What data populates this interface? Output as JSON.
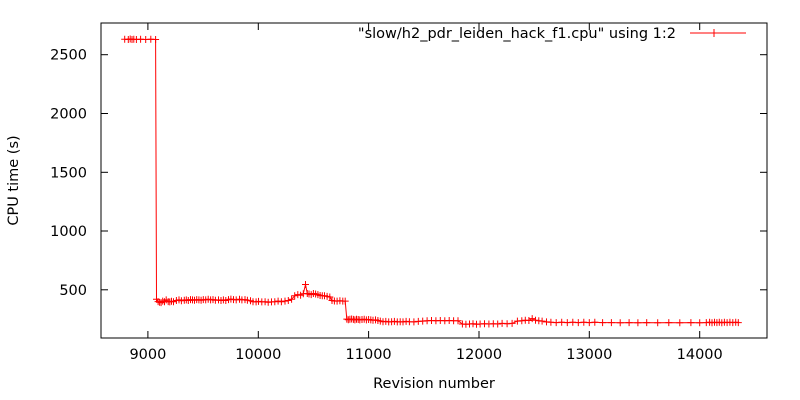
{
  "figure": {
    "background": "#ffffff",
    "border_color": "#000000",
    "text_color": "#000000",
    "series_color": "#ff0000"
  },
  "chart_data": {
    "type": "line",
    "title": "",
    "xlabel": "Revision number",
    "ylabel": "CPU time (s)",
    "legend": "\"slow/h2_pdr_leiden_hack_f1.cpu\" using 1:2",
    "legend_position": "top-right-inside",
    "marker": "plus",
    "grid": false,
    "xlim": [
      8575,
      14610
    ],
    "ylim": [
      90,
      2770
    ],
    "xticks": [
      9000,
      10000,
      11000,
      12000,
      13000,
      14000
    ],
    "yticks": [
      500,
      1000,
      1500,
      2000,
      2500
    ],
    "series": [
      {
        "name": "slow/h2_pdr_leiden_hack_f1.cpu",
        "points": [
          [
            8790,
            2632
          ],
          [
            8822,
            2630
          ],
          [
            8840,
            2634
          ],
          [
            8856,
            2630
          ],
          [
            8872,
            2632
          ],
          [
            8896,
            2630
          ],
          [
            8934,
            2632
          ],
          [
            8980,
            2630
          ],
          [
            9026,
            2632
          ],
          [
            9070,
            2630
          ],
          [
            9078,
            420
          ],
          [
            9092,
            400
          ],
          [
            9106,
            394
          ],
          [
            9120,
            391
          ],
          [
            9134,
            404
          ],
          [
            9150,
            398
          ],
          [
            9166,
            414
          ],
          [
            9184,
            400
          ],
          [
            9198,
            397
          ],
          [
            9214,
            402
          ],
          [
            9232,
            399
          ],
          [
            9258,
            409
          ],
          [
            9282,
            414
          ],
          [
            9304,
            407
          ],
          [
            9330,
            412
          ],
          [
            9348,
            414
          ],
          [
            9366,
            409
          ],
          [
            9386,
            417
          ],
          [
            9404,
            414
          ],
          [
            9422,
            411
          ],
          [
            9442,
            417
          ],
          [
            9462,
            414
          ],
          [
            9482,
            411
          ],
          [
            9502,
            417
          ],
          [
            9524,
            414
          ],
          [
            9546,
            419
          ],
          [
            9568,
            414
          ],
          [
            9590,
            417
          ],
          [
            9612,
            411
          ],
          [
            9640,
            414
          ],
          [
            9662,
            409
          ],
          [
            9684,
            414
          ],
          [
            9706,
            409
          ],
          [
            9730,
            417
          ],
          [
            9752,
            421
          ],
          [
            9776,
            417
          ],
          [
            9800,
            414
          ],
          [
            9830,
            419
          ],
          [
            9852,
            414
          ],
          [
            9880,
            417
          ],
          [
            9902,
            411
          ],
          [
            9930,
            407
          ],
          [
            9952,
            399
          ],
          [
            9980,
            397
          ],
          [
            10002,
            401
          ],
          [
            10032,
            397
          ],
          [
            10062,
            399
          ],
          [
            10090,
            394
          ],
          [
            10120,
            397
          ],
          [
            10150,
            399
          ],
          [
            10180,
            404
          ],
          [
            10210,
            399
          ],
          [
            10242,
            404
          ],
          [
            10272,
            409
          ],
          [
            10302,
            419
          ],
          [
            10330,
            449
          ],
          [
            10358,
            459
          ],
          [
            10384,
            454
          ],
          [
            10408,
            467
          ],
          [
            10428,
            545
          ],
          [
            10444,
            469
          ],
          [
            10460,
            464
          ],
          [
            10480,
            459
          ],
          [
            10500,
            469
          ],
          [
            10520,
            464
          ],
          [
            10540,
            459
          ],
          [
            10560,
            452
          ],
          [
            10580,
            449
          ],
          [
            10600,
            449
          ],
          [
            10624,
            444
          ],
          [
            10648,
            439
          ],
          [
            10668,
            409
          ],
          [
            10690,
            405
          ],
          [
            10714,
            404
          ],
          [
            10740,
            407
          ],
          [
            10766,
            404
          ],
          [
            10788,
            404
          ],
          [
            10802,
            251
          ],
          [
            10816,
            246
          ],
          [
            10830,
            249
          ],
          [
            10846,
            252
          ],
          [
            10862,
            248
          ],
          [
            10876,
            244
          ],
          [
            10890,
            250
          ],
          [
            10906,
            247
          ],
          [
            10920,
            244
          ],
          [
            10940,
            247
          ],
          [
            10960,
            250
          ],
          [
            10980,
            244
          ],
          [
            11000,
            247
          ],
          [
            11020,
            244
          ],
          [
            11040,
            241
          ],
          [
            11062,
            244
          ],
          [
            11084,
            239
          ],
          [
            11106,
            234
          ],
          [
            11130,
            229
          ],
          [
            11156,
            231
          ],
          [
            11182,
            227
          ],
          [
            11208,
            229
          ],
          [
            11234,
            231
          ],
          [
            11260,
            227
          ],
          [
            11286,
            229
          ],
          [
            11312,
            227
          ],
          [
            11340,
            231
          ],
          [
            11370,
            229
          ],
          [
            11410,
            227
          ],
          [
            11450,
            231
          ],
          [
            11490,
            234
          ],
          [
            11530,
            237
          ],
          [
            11570,
            239
          ],
          [
            11610,
            237
          ],
          [
            11650,
            239
          ],
          [
            11690,
            237
          ],
          [
            11730,
            239
          ],
          [
            11770,
            237
          ],
          [
            11810,
            237
          ],
          [
            11850,
            209
          ],
          [
            11882,
            207
          ],
          [
            11914,
            209
          ],
          [
            11946,
            211
          ],
          [
            11978,
            207
          ],
          [
            12010,
            209
          ],
          [
            12050,
            211
          ],
          [
            12090,
            209
          ],
          [
            12130,
            211
          ],
          [
            12170,
            209
          ],
          [
            12210,
            214
          ],
          [
            12255,
            211
          ],
          [
            12300,
            214
          ],
          [
            12348,
            234
          ],
          [
            12388,
            237
          ],
          [
            12420,
            241
          ],
          [
            12452,
            239
          ],
          [
            12482,
            255
          ],
          [
            12512,
            241
          ],
          [
            12542,
            237
          ],
          [
            12572,
            234
          ],
          [
            12612,
            227
          ],
          [
            12652,
            224
          ],
          [
            12700,
            221
          ],
          [
            12750,
            224
          ],
          [
            12800,
            221
          ],
          [
            12850,
            224
          ],
          [
            12900,
            221
          ],
          [
            12950,
            224
          ],
          [
            13000,
            221
          ],
          [
            13050,
            224
          ],
          [
            13120,
            221
          ],
          [
            13200,
            221
          ],
          [
            13280,
            219
          ],
          [
            13360,
            221
          ],
          [
            13440,
            219
          ],
          [
            13520,
            221
          ],
          [
            13620,
            219
          ],
          [
            13720,
            221
          ],
          [
            13820,
            219
          ],
          [
            13920,
            221
          ],
          [
            14000,
            219
          ],
          [
            14060,
            221
          ],
          [
            14090,
            224
          ],
          [
            14112,
            219
          ],
          [
            14134,
            224
          ],
          [
            14156,
            221
          ],
          [
            14178,
            224
          ],
          [
            14200,
            219
          ],
          [
            14224,
            224
          ],
          [
            14248,
            221
          ],
          [
            14274,
            224
          ],
          [
            14300,
            221
          ],
          [
            14326,
            224
          ],
          [
            14350,
            221
          ]
        ]
      }
    ]
  }
}
